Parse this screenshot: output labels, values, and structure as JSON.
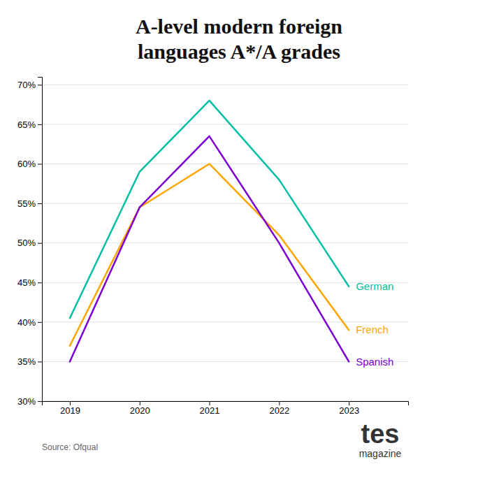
{
  "chart_data": {
    "type": "line",
    "title": [
      "A-level modern foreign",
      "languages A*/A grades"
    ],
    "x": [
      2019,
      2020,
      2021,
      2022,
      2023
    ],
    "series": [
      {
        "name": "German",
        "color": "#00BFA5",
        "values": [
          40.5,
          59.0,
          68.0,
          58.0,
          44.5
        ]
      },
      {
        "name": "French",
        "color": "#FFA500",
        "values": [
          37.0,
          54.5,
          60.0,
          51.0,
          39.0
        ]
      },
      {
        "name": "Spanish",
        "color": "#7B00D4",
        "values": [
          35.0,
          54.5,
          63.5,
          50.0,
          35.0
        ]
      }
    ],
    "xlim": [
      2018.6,
      2023.85
    ],
    "xticks": [
      2019,
      2020,
      2021,
      2022,
      2023
    ],
    "ylim": [
      30,
      71
    ],
    "yticks": [
      {
        "value": 30,
        "label": "30%"
      },
      {
        "value": 35,
        "label": "35%"
      },
      {
        "value": 40,
        "label": "40%"
      },
      {
        "value": 45,
        "label": "45%"
      },
      {
        "value": 50,
        "label": "50%"
      },
      {
        "value": 55,
        "label": "55%"
      },
      {
        "value": 60,
        "label": "60%"
      },
      {
        "value": 65,
        "label": "65%"
      },
      {
        "value": 70,
        "label": "70%"
      }
    ],
    "grid": true,
    "annotations": [
      "Source: Ofqual",
      "tes",
      "magazine"
    ]
  }
}
